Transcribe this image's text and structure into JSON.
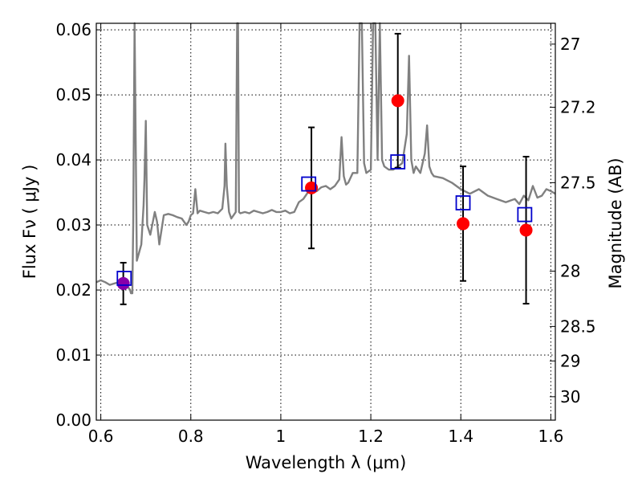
{
  "chart_data": {
    "type": "scatter",
    "title": "",
    "xlabel": "Wavelength  λ (μm)",
    "ylabel": "Flux  Fν  ( μJy )",
    "y2label": "Magnitude (AB)",
    "xlim": [
      0.59,
      1.61
    ],
    "ylim": [
      0.0,
      0.061
    ],
    "grid": true,
    "x_ticks": [
      0.6,
      0.8,
      1.0,
      1.2,
      1.4,
      1.6
    ],
    "x_tick_labels": [
      "0.6",
      "0.8",
      "1",
      "1.2",
      "1.4",
      "1.6"
    ],
    "y_ticks": [
      0.0,
      0.01,
      0.02,
      0.03,
      0.04,
      0.05,
      0.06
    ],
    "y_tick_labels": [
      "0.00",
      "0.01",
      "0.02",
      "0.03",
      "0.04",
      "0.05",
      "0.06"
    ],
    "y2_ticks": [
      {
        "label": "27",
        "flux": 0.0578
      },
      {
        "label": "27.2",
        "flux": 0.0481
      },
      {
        "label": "27.5",
        "flux": 0.0365
      },
      {
        "label": "28",
        "flux": 0.0229
      },
      {
        "label": "28.5",
        "flux": 0.0144
      },
      {
        "label": "29",
        "flux": 0.0091
      },
      {
        "label": "30",
        "flux": 0.0036
      }
    ],
    "series": [
      {
        "kind": "model-spectrum",
        "color": "#808080",
        "x": [
          0.59,
          0.6,
          0.61,
          0.62,
          0.63,
          0.64,
          0.65,
          0.66,
          0.665,
          0.667,
          0.67,
          0.672,
          0.675,
          0.68,
          0.69,
          0.695,
          0.697,
          0.7,
          0.703,
          0.71,
          0.72,
          0.725,
          0.73,
          0.74,
          0.75,
          0.76,
          0.77,
          0.78,
          0.79,
          0.795,
          0.8,
          0.805,
          0.81,
          0.815,
          0.82,
          0.83,
          0.84,
          0.85,
          0.86,
          0.87,
          0.875,
          0.877,
          0.88,
          0.885,
          0.89,
          0.9,
          0.903,
          0.905,
          0.907,
          0.91,
          0.92,
          0.93,
          0.94,
          0.95,
          0.96,
          0.97,
          0.98,
          0.99,
          1.0,
          1.01,
          1.02,
          1.03,
          1.04,
          1.05,
          1.06,
          1.07,
          1.08,
          1.09,
          1.1,
          1.11,
          1.12,
          1.13,
          1.135,
          1.14,
          1.145,
          1.15,
          1.16,
          1.17,
          1.175,
          1.18,
          1.185,
          1.19,
          1.2,
          1.205,
          1.21,
          1.215,
          1.22,
          1.225,
          1.23,
          1.24,
          1.25,
          1.26,
          1.27,
          1.28,
          1.285,
          1.29,
          1.295,
          1.3,
          1.31,
          1.32,
          1.325,
          1.33,
          1.335,
          1.34,
          1.36,
          1.38,
          1.4,
          1.42,
          1.44,
          1.46,
          1.48,
          1.5,
          1.52,
          1.53,
          1.54,
          1.55,
          1.56,
          1.57,
          1.58,
          1.59,
          1.6,
          1.61
        ],
        "y": [
          0.0212,
          0.0215,
          0.0212,
          0.0208,
          0.021,
          0.0212,
          0.0208,
          0.0205,
          0.02,
          0.0195,
          0.0195,
          0.03,
          0.061,
          0.0245,
          0.027,
          0.033,
          0.037,
          0.046,
          0.03,
          0.0285,
          0.032,
          0.0305,
          0.027,
          0.0315,
          0.0317,
          0.0315,
          0.0312,
          0.031,
          0.03,
          0.0305,
          0.0315,
          0.0318,
          0.0355,
          0.0318,
          0.0322,
          0.032,
          0.0318,
          0.032,
          0.0318,
          0.0325,
          0.036,
          0.0425,
          0.036,
          0.032,
          0.031,
          0.032,
          0.061,
          0.061,
          0.032,
          0.0318,
          0.032,
          0.0318,
          0.0322,
          0.032,
          0.0318,
          0.032,
          0.0323,
          0.032,
          0.032,
          0.0322,
          0.0318,
          0.032,
          0.0335,
          0.034,
          0.035,
          0.035,
          0.0352,
          0.0358,
          0.036,
          0.0355,
          0.036,
          0.037,
          0.0435,
          0.0375,
          0.0362,
          0.0365,
          0.038,
          0.038,
          0.061,
          0.061,
          0.0395,
          0.038,
          0.0385,
          0.061,
          0.061,
          0.04,
          0.061,
          0.04,
          0.039,
          0.0385,
          0.0385,
          0.039,
          0.0395,
          0.044,
          0.056,
          0.04,
          0.038,
          0.039,
          0.038,
          0.041,
          0.0453,
          0.039,
          0.038,
          0.0375,
          0.0372,
          0.0365,
          0.0355,
          0.0348,
          0.0355,
          0.0345,
          0.034,
          0.0335,
          0.034,
          0.0332,
          0.0345,
          0.0338,
          0.036,
          0.0342,
          0.0345,
          0.0355,
          0.0352,
          0.0348
        ]
      },
      {
        "kind": "observed-photometry",
        "color": "#ff0000",
        "x": [
          0.65,
          1.068,
          1.26,
          1.405,
          1.545
        ],
        "y": [
          0.021,
          0.0357,
          0.0491,
          0.0302,
          0.0292
        ],
        "yerr": [
          0.0032,
          0.0093,
          0.0103,
          0.0088,
          0.0113
        ]
      },
      {
        "kind": "model-photometry",
        "color": "#0000cc",
        "x": [
          0.652,
          1.062,
          1.26,
          1.405,
          1.542
        ],
        "y": [
          0.0218,
          0.0363,
          0.0397,
          0.0334,
          0.0316
        ]
      }
    ],
    "first_point_fill": "#8800aa"
  }
}
